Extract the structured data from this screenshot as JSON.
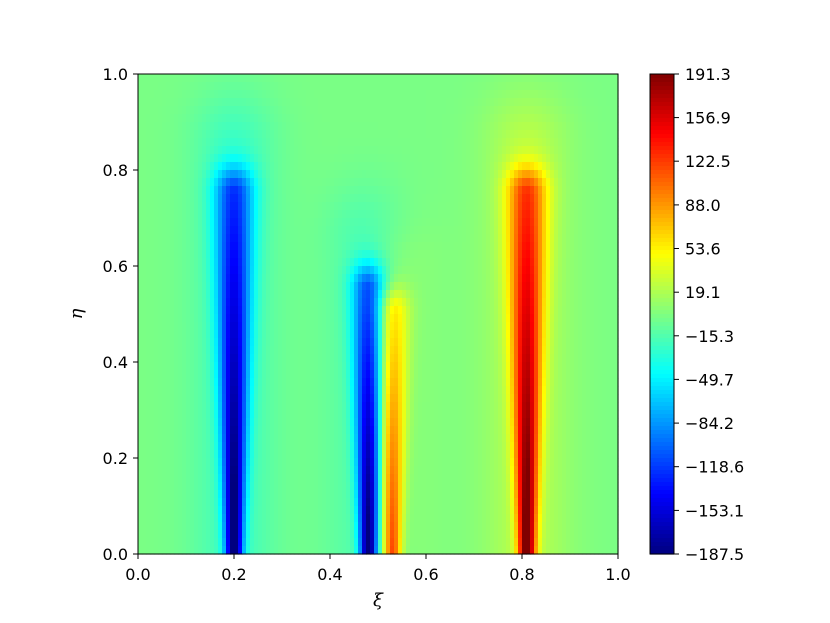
{
  "chart_data": {
    "type": "heatmap",
    "title": "",
    "xlabel": "ξ",
    "ylabel": "η",
    "xlim": [
      0.0,
      1.0
    ],
    "ylim": [
      0.0,
      1.0
    ],
    "xticks": [
      "0.0",
      "0.2",
      "0.4",
      "0.6",
      "0.8",
      "1.0"
    ],
    "yticks": [
      "0.0",
      "0.2",
      "0.4",
      "0.6",
      "0.8",
      "1.0"
    ],
    "colormap": "jet",
    "colorbar": {
      "min": -187.5,
      "max": 191.3,
      "ticks": [
        "191.3",
        "156.9",
        "122.5",
        "88.0",
        "53.6",
        "19.1",
        "-15.3",
        "-49.7",
        "-84.2",
        "-118.6",
        "-153.1",
        "-187.5"
      ]
    },
    "background_value": 0,
    "features": [
      {
        "x": 0.2,
        "y_top": 0.75,
        "peak": -187.5,
        "sign": "negative"
      },
      {
        "x": 0.48,
        "y_top": 0.55,
        "peak": -187.5,
        "sign": "negative"
      },
      {
        "x": 0.53,
        "y_top": 0.5,
        "peak": 120,
        "sign": "positive"
      },
      {
        "x": 0.81,
        "y_top": 0.75,
        "peak": 191.3,
        "sign": "positive"
      }
    ],
    "grid": false
  }
}
